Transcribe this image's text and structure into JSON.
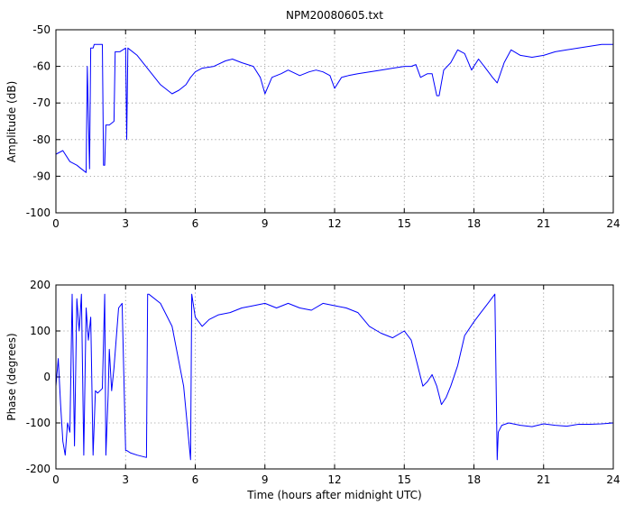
{
  "chart_data": [
    {
      "type": "line",
      "title": "NPM20080605.txt",
      "xlabel": "",
      "ylabel": "Amplitude (dB)",
      "xlim": [
        0,
        24
      ],
      "ylim": [
        -100,
        -50
      ],
      "xticks": [
        0,
        3,
        6,
        9,
        12,
        15,
        18,
        21,
        24
      ],
      "yticks": [
        -100,
        -90,
        -80,
        -70,
        -60,
        -50
      ],
      "grid": true,
      "color": "#0000ff",
      "series": [
        {
          "x": [
            0,
            0.3,
            0.6,
            0.9,
            1.1,
            1.3,
            1.35,
            1.45,
            1.5,
            1.6,
            1.65,
            1.75,
            2.0,
            2.05,
            2.1,
            2.15,
            2.3,
            2.5,
            2.55,
            2.75,
            3.0,
            3.05,
            3.1,
            3.5,
            4.0,
            4.5,
            5.0,
            5.3,
            5.6,
            5.8,
            6.0,
            6.3,
            6.8,
            7.3,
            7.6,
            8.0,
            8.5,
            8.8,
            9.0,
            9.3,
            9.7,
            10.0,
            10.5,
            10.9,
            11.2,
            11.5,
            11.8,
            12.0,
            12.3,
            12.6,
            13.0,
            13.5,
            14.0,
            14.5,
            15.0,
            15.3,
            15.5,
            15.7,
            16.0,
            16.2,
            16.4,
            16.5,
            16.7,
            17.0,
            17.3,
            17.6,
            17.9,
            18.2,
            18.5,
            18.8,
            19.0,
            19.3,
            19.6,
            20.0,
            20.5,
            21.0,
            21.5,
            22.0,
            22.5,
            23.0,
            23.5,
            24.0
          ],
          "values": [
            -84,
            -83,
            -86,
            -87,
            -88,
            -89,
            -60,
            -88,
            -55,
            -55,
            -54,
            -54,
            -54,
            -87,
            -87,
            -76,
            -76,
            -75,
            -56,
            -56,
            -55,
            -80,
            -55,
            -57,
            -61,
            -65,
            -67.5,
            -66.5,
            -65,
            -63,
            -61.5,
            -60.5,
            -60,
            -58.5,
            -58,
            -59,
            -60,
            -63,
            -67.5,
            -63,
            -62,
            -61,
            -62.5,
            -61.5,
            -61,
            -61.5,
            -62.5,
            -66,
            -63,
            -62.5,
            -62,
            -61.5,
            -61,
            -60.5,
            -60,
            -60,
            -59.5,
            -63,
            -62,
            -62,
            -68,
            -68,
            -61,
            -59,
            -55.5,
            -56.5,
            -61,
            -58,
            -60.5,
            -63,
            -64.5,
            -59,
            -55.5,
            -57,
            -57.5,
            -57,
            -56,
            -55.5,
            -55,
            -54.5,
            -54,
            -54
          ]
        }
      ]
    },
    {
      "type": "line",
      "title": "",
      "xlabel": "Time (hours after midnight UTC)",
      "ylabel": "Phase (degrees)",
      "xlim": [
        0,
        24
      ],
      "ylim": [
        -200,
        200
      ],
      "xticks": [
        0,
        3,
        6,
        9,
        12,
        15,
        18,
        21,
        24
      ],
      "yticks": [
        -200,
        -100,
        0,
        100,
        200
      ],
      "grid": true,
      "color": "#0000ff",
      "series": [
        {
          "x": [
            0,
            0.1,
            0.2,
            0.3,
            0.4,
            0.5,
            0.6,
            0.7,
            0.8,
            0.9,
            1.0,
            1.1,
            1.2,
            1.3,
            1.4,
            1.5,
            1.6,
            1.7,
            1.8,
            1.9,
            2.0,
            2.1,
            2.15,
            2.25,
            2.3,
            2.4,
            2.5,
            2.7,
            2.85,
            3.0,
            3.05,
            3.2,
            3.5,
            3.9,
            3.95,
            4.0,
            4.5,
            5.0,
            5.5,
            5.8,
            5.85,
            6.0,
            6.3,
            6.6,
            7.0,
            7.5,
            8.0,
            8.5,
            9.0,
            9.5,
            10.0,
            10.5,
            11.0,
            11.5,
            12.0,
            12.5,
            13.0,
            13.5,
            14.0,
            14.5,
            15.0,
            15.3,
            15.6,
            15.8,
            16.0,
            16.2,
            16.4,
            16.6,
            16.8,
            17.0,
            17.3,
            17.6,
            18.0,
            18.3,
            18.6,
            18.9,
            19.0,
            19.05,
            19.2,
            19.5,
            20.0,
            20.5,
            21.0,
            21.5,
            22.0,
            22.5,
            23.0,
            23.5,
            24.0
          ],
          "values": [
            -20,
            40,
            -60,
            -140,
            -170,
            -100,
            -120,
            180,
            -150,
            170,
            100,
            180,
            -170,
            150,
            80,
            130,
            -170,
            -30,
            -35,
            -30,
            -25,
            180,
            -170,
            -40,
            60,
            -30,
            20,
            150,
            160,
            -160,
            -160,
            -165,
            -170,
            -175,
            180,
            180,
            160,
            110,
            -20,
            -180,
            180,
            130,
            110,
            125,
            135,
            140,
            150,
            155,
            160,
            150,
            160,
            150,
            145,
            160,
            155,
            150,
            140,
            110,
            95,
            85,
            100,
            80,
            20,
            -20,
            -10,
            5,
            -20,
            -60,
            -45,
            -20,
            25,
            90,
            120,
            140,
            160,
            180,
            -180,
            -120,
            -105,
            -100,
            -105,
            -108,
            -102,
            -105,
            -107,
            -103,
            -103,
            -102,
            -100
          ]
        }
      ]
    }
  ]
}
